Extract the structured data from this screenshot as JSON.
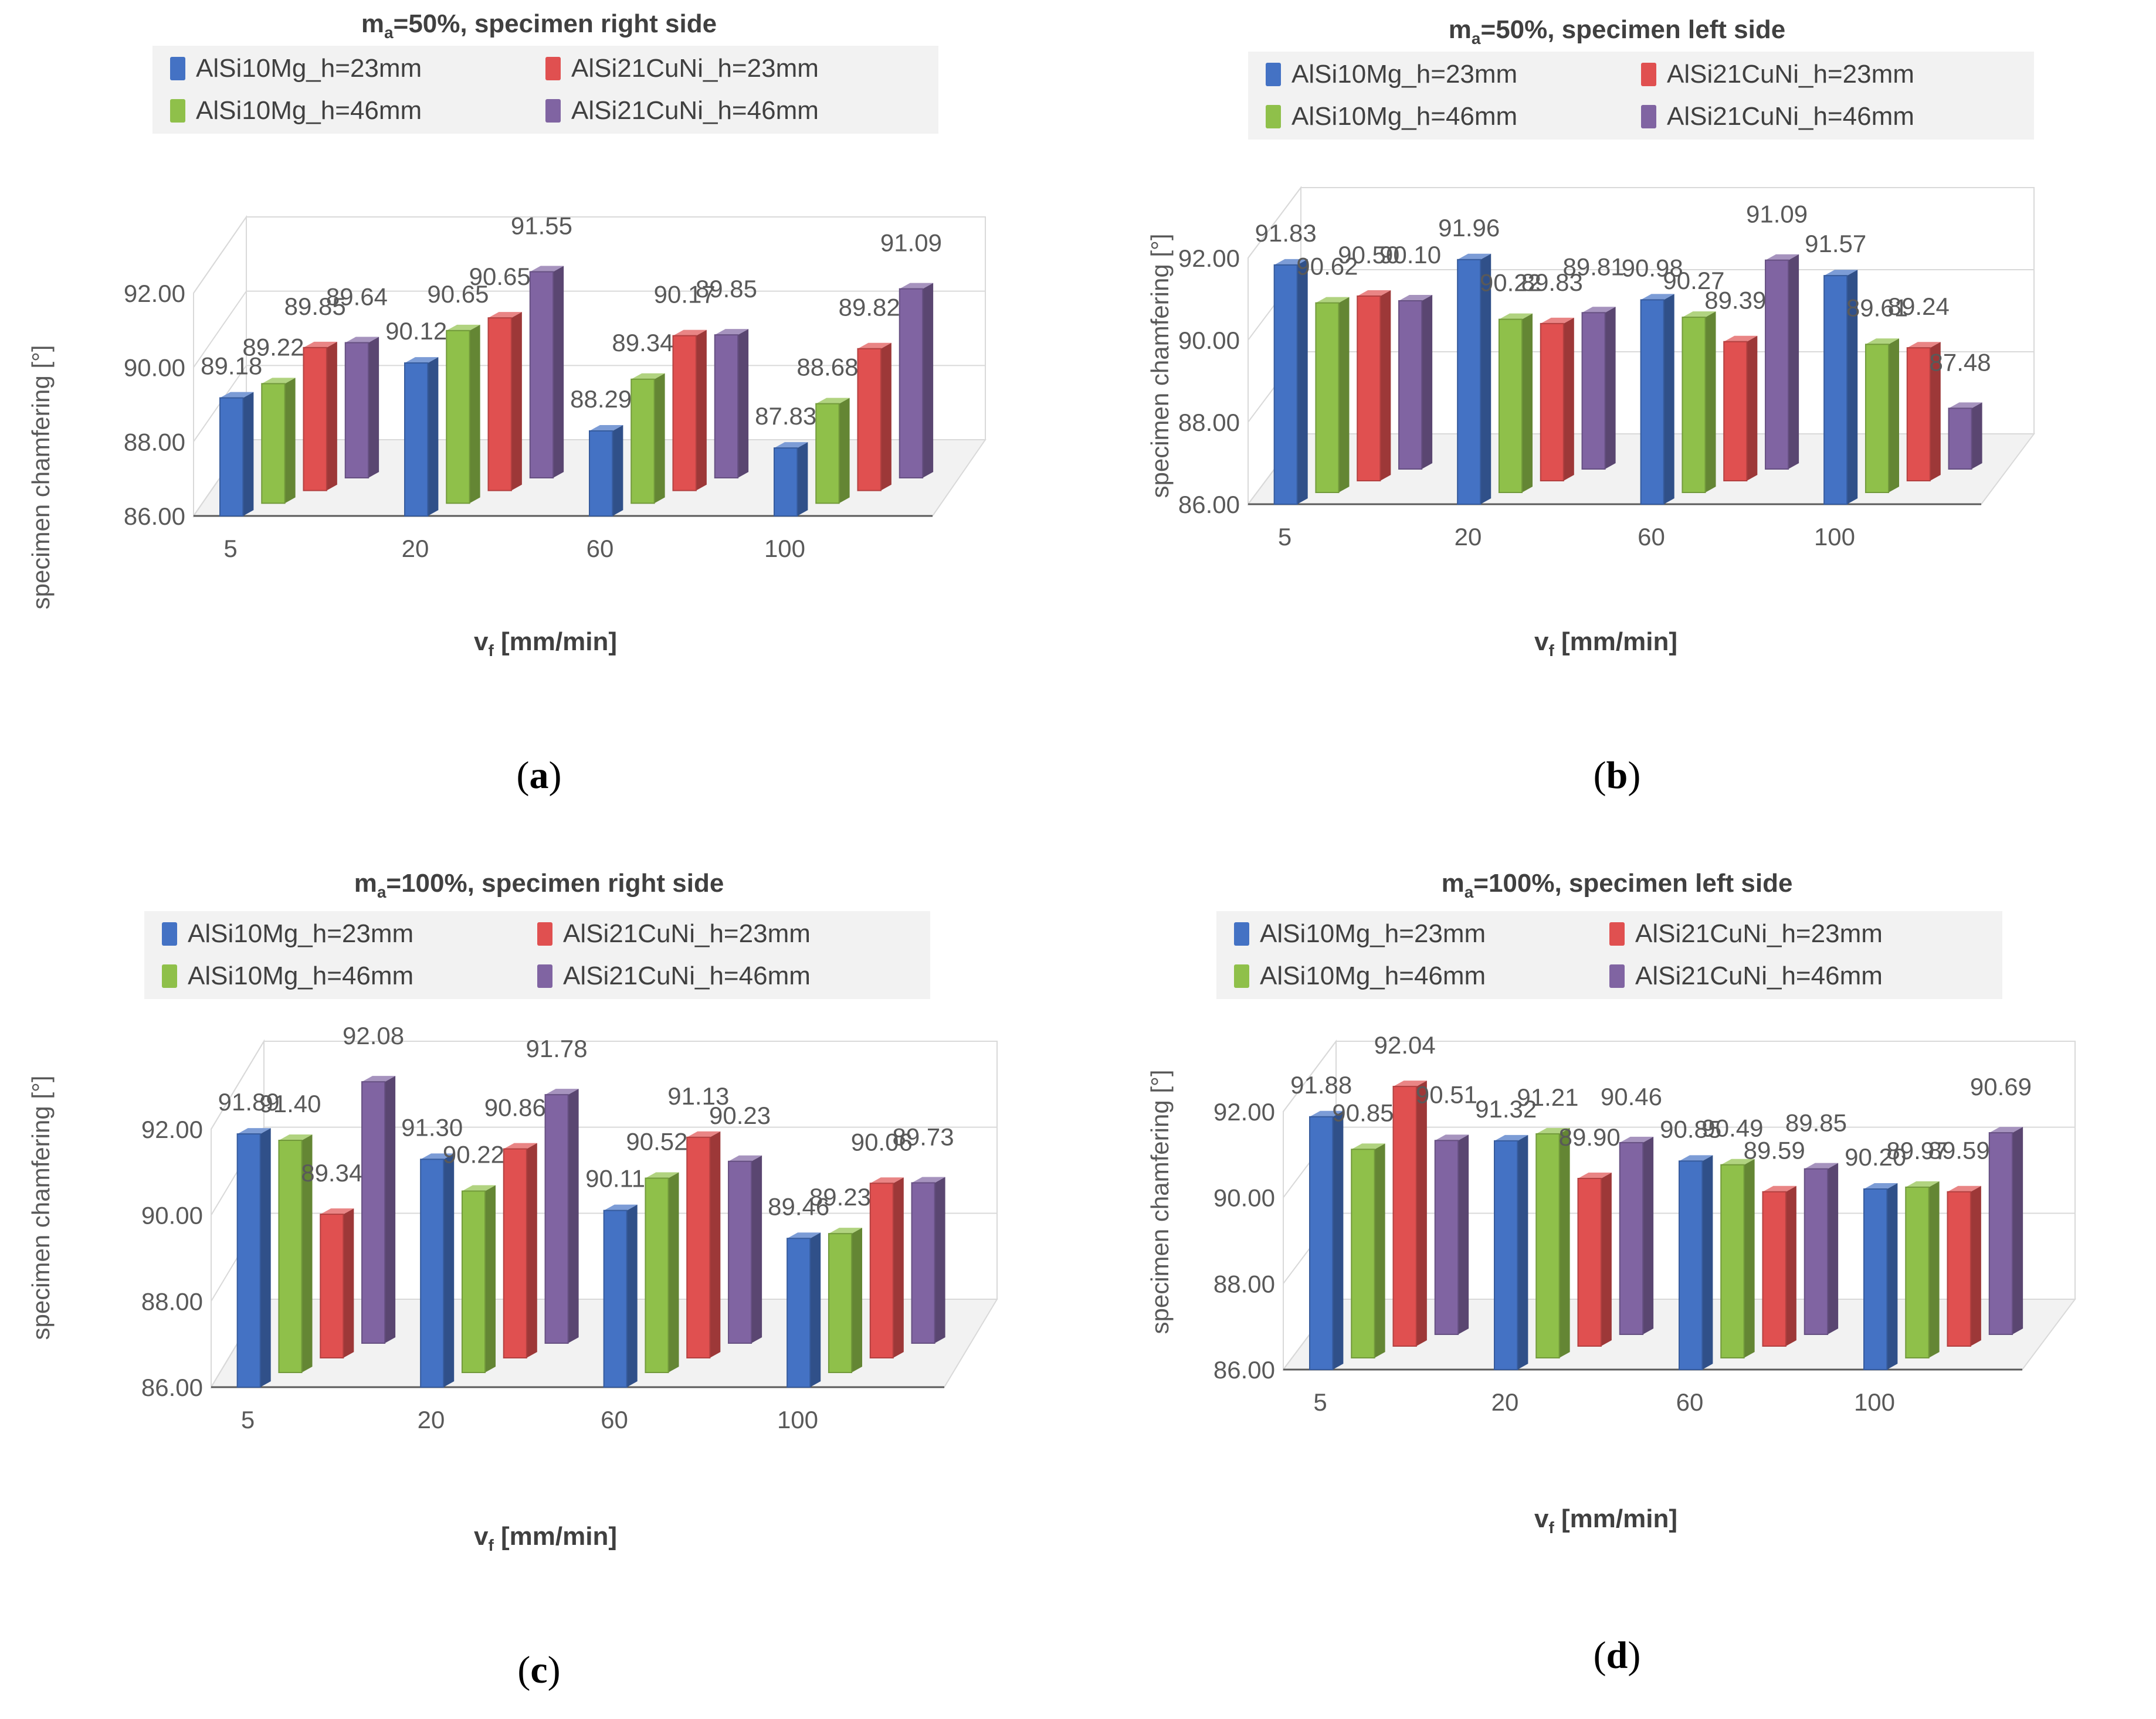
{
  "units": {
    "x_label_prefix": "v",
    "x_label_sub": "f",
    "x_label_rest": " [mm/min]",
    "y_label": "specimen chamfering [°]"
  },
  "series_colors": {
    "AlSi10Mg_h=23mm": "#4472c4",
    "AlSi21CuNi_h=23mm": "#e05050",
    "AlSi10Mg_h=46mm": "#8fc04a",
    "AlSi21CuNi_h=46mm": "#8064a2"
  },
  "panels": [
    {
      "caption_letter": "a",
      "title_pre": "m",
      "title_sub": "a",
      "title_post": "=50%, specimen right side"
    },
    {
      "caption_letter": "b",
      "title_pre": "m",
      "title_sub": "a",
      "title_post": "=50%, specimen left side"
    },
    {
      "caption_letter": "c",
      "title_pre": "m",
      "title_sub": "a",
      "title_post": "=100%, specimen right side"
    },
    {
      "caption_letter": "d",
      "title_pre": "m",
      "title_sub": "a",
      "title_post": "=100%, specimen left side"
    }
  ],
  "chart_data": [
    {
      "type": "bar",
      "title": "ma=50%, specimen right side",
      "categories": [
        "5",
        "20",
        "60",
        "100"
      ],
      "xlabel": "vf [mm/min]",
      "ylabel": "specimen chamfering [°]",
      "ylim": [
        86,
        92
      ],
      "yticks": [
        "86.00",
        "88.00",
        "90.00",
        "92.00"
      ],
      "legend": "top",
      "series": [
        {
          "name": "AlSi10Mg_h=23mm",
          "values": [
            89.18,
            90.12,
            88.29,
            87.83
          ]
        },
        {
          "name": "AlSi10Mg_h=46mm",
          "values": [
            89.22,
            90.65,
            89.34,
            88.68
          ]
        },
        {
          "name": "AlSi21CuNi_h=23mm",
          "values": [
            89.85,
            90.65,
            90.17,
            89.82
          ]
        },
        {
          "name": "AlSi21CuNi_h=46mm",
          "values": [
            89.64,
            91.55,
            89.85,
            91.09
          ]
        }
      ]
    },
    {
      "type": "bar",
      "title": "ma=50%, specimen left side",
      "categories": [
        "5",
        "20",
        "60",
        "100"
      ],
      "xlabel": "vf [mm/min]",
      "ylabel": "specimen chamfering [°]",
      "ylim": [
        86,
        92
      ],
      "yticks": [
        "86.00",
        "88.00",
        "90.00",
        "92.00"
      ],
      "legend": "top",
      "series": [
        {
          "name": "AlSi10Mg_h=23mm",
          "values": [
            91.83,
            91.96,
            90.98,
            91.57
          ]
        },
        {
          "name": "AlSi10Mg_h=46mm",
          "values": [
            90.62,
            90.22,
            90.27,
            89.61
          ]
        },
        {
          "name": "AlSi21CuNi_h=23mm",
          "values": [
            90.5,
            89.83,
            89.39,
            89.24
          ]
        },
        {
          "name": "AlSi21CuNi_h=46mm",
          "values": [
            90.1,
            89.81,
            91.09,
            87.48
          ]
        }
      ]
    },
    {
      "type": "bar",
      "title": "ma=100%, specimen right side",
      "categories": [
        "5",
        "20",
        "60",
        "100"
      ],
      "xlabel": "vf [mm/min]",
      "ylabel": "specimen chamfering [°]",
      "ylim": [
        86,
        92
      ],
      "yticks": [
        "86.00",
        "88.00",
        "90.00",
        "92.00"
      ],
      "legend": "top",
      "series": [
        {
          "name": "AlSi10Mg_h=23mm",
          "values": [
            91.89,
            91.3,
            90.11,
            89.46
          ]
        },
        {
          "name": "AlSi10Mg_h=46mm",
          "values": [
            91.4,
            90.22,
            90.52,
            89.23
          ]
        },
        {
          "name": "AlSi21CuNi_h=23mm",
          "values": [
            89.34,
            90.86,
            91.13,
            90.06
          ]
        },
        {
          "name": "AlSi21CuNi_h=46mm",
          "values": [
            92.08,
            91.78,
            90.23,
            89.73
          ]
        }
      ]
    },
    {
      "type": "bar",
      "title": "ma=100%, specimen left side",
      "categories": [
        "5",
        "20",
        "60",
        "100"
      ],
      "xlabel": "vf [mm/min]",
      "ylabel": "specimen chamfering [°]",
      "ylim": [
        86,
        92
      ],
      "yticks": [
        "86.00",
        "88.00",
        "90.00",
        "92.00"
      ],
      "legend": "top",
      "series": [
        {
          "name": "AlSi10Mg_h=23mm",
          "values": [
            91.88,
            91.32,
            90.85,
            90.2
          ]
        },
        {
          "name": "AlSi10Mg_h=46mm",
          "values": [
            90.85,
            91.21,
            90.49,
            89.97
          ]
        },
        {
          "name": "AlSi21CuNi_h=23mm",
          "values": [
            92.04,
            89.9,
            89.59,
            89.59
          ]
        },
        {
          "name": "AlSi21CuNi_h=46mm",
          "values": [
            90.51,
            90.46,
            89.85,
            90.69
          ]
        }
      ]
    }
  ]
}
